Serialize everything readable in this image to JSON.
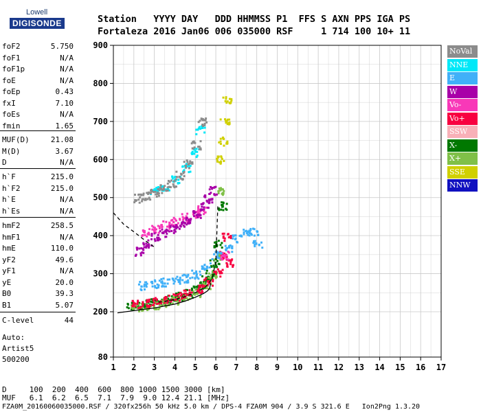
{
  "logo": {
    "top": "Lowell",
    "bottom": "DIGISONDE"
  },
  "header": {
    "line1": "Station   YYYY DAY   DDD HHMMSS P1  FFS S AXN PPS IGA PS",
    "line2": "Fortaleza 2016 Jan06 006 035000 RSF     1 714 100 10+ 11"
  },
  "params_group1": [
    {
      "name": "foF2",
      "value": "5.750"
    },
    {
      "name": "foF1",
      "value": "N/A"
    },
    {
      "name": "foF1p",
      "value": "N/A"
    },
    {
      "name": "foE",
      "value": "N/A"
    },
    {
      "name": "foEp",
      "value": "0.43"
    },
    {
      "name": "fxI",
      "value": "7.10"
    },
    {
      "name": "foEs",
      "value": "N/A"
    },
    {
      "name": "fmin",
      "value": "1.65"
    }
  ],
  "params_group2": [
    {
      "name": "MUF(D)",
      "value": "21.08"
    },
    {
      "name": "M(D)",
      "value": "3.67"
    },
    {
      "name": "D",
      "value": "N/A"
    }
  ],
  "params_group3": [
    {
      "name": "h`F",
      "value": "215.0"
    },
    {
      "name": "h`F2",
      "value": "215.0"
    },
    {
      "name": "h`E",
      "value": "N/A"
    },
    {
      "name": "h`Es",
      "value": "N/A"
    }
  ],
  "params_group4": [
    {
      "name": "hmF2",
      "value": "258.5"
    },
    {
      "name": "hmF1",
      "value": "N/A"
    },
    {
      "name": "hmE",
      "value": "110.0"
    },
    {
      "name": "yF2",
      "value": "49.6"
    },
    {
      "name": "yF1",
      "value": "N/A"
    },
    {
      "name": "yE",
      "value": "20.0"
    },
    {
      "name": "B0",
      "value": "39.3"
    },
    {
      "name": "B1",
      "value": "5.07"
    }
  ],
  "clevel": {
    "name": "C-level",
    "value": "44"
  },
  "auto": {
    "l1": "Auto:",
    "l2": "Artist5",
    "l3": "500200"
  },
  "legend": [
    {
      "label": "NoVal",
      "color": "#8c8c8c"
    },
    {
      "label": "NNE",
      "color": "#00e8f8"
    },
    {
      "label": "E",
      "color": "#40b0f8"
    },
    {
      "label": "W",
      "color": "#a800a8"
    },
    {
      "label": "Vo-",
      "color": "#f838b8"
    },
    {
      "label": "Vo+",
      "color": "#f80040"
    },
    {
      "label": "SSW",
      "color": "#f8b0b8"
    },
    {
      "label": "X-",
      "color": "#007800"
    },
    {
      "label": "X+",
      "color": "#80c048"
    },
    {
      "label": "SSE",
      "color": "#d0d000"
    },
    {
      "label": "NNW",
      "color": "#1010c0"
    }
  ],
  "footer": {
    "row1": "D     100  200  400  600  800 1000 1500 3000 [km]",
    "row2": "MUF   6.1  6.2  6.5  7.1  7.9  9.0 12.4 21.1 [MHz]",
    "row3": "FZA0M_20160060035000.RSF / 320fx256h 50 kHz 5.0 km / DPS-4 FZA0M 904 / 3.9 S 321.6 E   Ion2Png 1.3.20"
  },
  "chart_data": {
    "type": "scatter",
    "title": "",
    "xlabel": "",
    "ylabel": "",
    "xlim": [
      1,
      17
    ],
    "ylim": [
      80,
      900
    ],
    "x_ticks": [
      1,
      2,
      3,
      4,
      5,
      6,
      7,
      8,
      9,
      10,
      11,
      12,
      13,
      14,
      15,
      16,
      17
    ],
    "y_ticks": [
      80,
      200,
      300,
      400,
      500,
      600,
      700,
      800,
      900
    ],
    "grid": true,
    "legend_position": "right",
    "series": [
      {
        "name": "X-",
        "color": "#007800",
        "x": [
          1.8,
          2.2,
          2.6,
          3.0,
          3.4,
          3.8,
          4.2,
          4.6,
          5.0,
          5.3,
          5.5,
          5.7,
          5.9,
          6.1,
          6.3
        ],
        "y": [
          215,
          218,
          222,
          226,
          230,
          236,
          242,
          250,
          260,
          272,
          285,
          300,
          330,
          380,
          480
        ]
      },
      {
        "name": "X+",
        "color": "#80c048",
        "x": [
          2.0,
          2.5,
          3.0,
          3.5,
          4.0,
          4.5,
          5.0,
          5.5,
          5.8,
          6.0,
          6.3
        ],
        "y": [
          212,
          216,
          220,
          226,
          232,
          240,
          252,
          272,
          300,
          350,
          520
        ]
      },
      {
        "name": "Vo+",
        "color": "#f80040",
        "x": [
          2.1,
          2.6,
          3.1,
          3.6,
          4.1,
          4.6,
          5.1,
          5.6,
          6.1,
          6.3,
          6.5,
          6.7
        ],
        "y": [
          222,
          226,
          230,
          236,
          242,
          250,
          262,
          280,
          305,
          350,
          400,
          330
        ]
      },
      {
        "name": "Vo-",
        "color": "#f838b8",
        "x": [
          2.5,
          3.0,
          3.5,
          4.0,
          4.5,
          5.0,
          5.3,
          6.4
        ],
        "y": [
          410,
          420,
          430,
          440,
          450,
          460,
          470,
          350
        ]
      },
      {
        "name": "W",
        "color": "#a800a8",
        "x": [
          2.2,
          2.6,
          3.0,
          3.4,
          3.8,
          4.2,
          4.6,
          5.0,
          5.4,
          5.6,
          5.8
        ],
        "y": [
          360,
          380,
          400,
          410,
          420,
          430,
          440,
          460,
          480,
          500,
          520
        ]
      },
      {
        "name": "E",
        "color": "#40b0f8",
        "x": [
          2.4,
          3.0,
          3.5,
          4.0,
          4.5,
          5.0,
          5.5,
          6.0,
          6.6,
          7.0,
          7.5,
          7.8,
          8.0
        ],
        "y": [
          270,
          275,
          280,
          285,
          290,
          300,
          320,
          350,
          370,
          395,
          415,
          410,
          380
        ]
      },
      {
        "name": "NNE",
        "color": "#00e8f8",
        "x": [
          3.0,
          3.5,
          4.0,
          4.5,
          5.0,
          5.2
        ],
        "y": [
          520,
          530,
          550,
          580,
          620,
          680
        ]
      },
      {
        "name": "NoVal",
        "color": "#8c8c8c",
        "x": [
          2.2,
          2.6,
          3.0,
          3.4,
          3.8,
          4.2,
          4.6,
          5.0,
          5.3
        ],
        "y": [
          500,
          505,
          515,
          525,
          540,
          560,
          590,
          640,
          700
        ]
      },
      {
        "name": "SSE",
        "color": "#d0d000",
        "x": [
          6.2,
          6.3,
          6.4,
          6.5
        ],
        "y": [
          600,
          650,
          700,
          760
        ]
      }
    ],
    "trace_lines": [
      {
        "style": "solid",
        "x": [
          1.2,
          2.0,
          3.0,
          4.0,
          4.5,
          5.0,
          5.4,
          5.6,
          5.7,
          5.75
        ],
        "y": [
          197,
          203,
          210,
          220,
          228,
          238,
          248,
          255,
          262,
          275
        ]
      },
      {
        "style": "dashed",
        "x": [
          1.0,
          1.5,
          2.0,
          2.6,
          3.0
        ],
        "y": [
          460,
          430,
          410,
          385,
          370
        ]
      },
      {
        "style": "dashed",
        "x": [
          3.2,
          3.8,
          4.4,
          5.0,
          5.5,
          5.8,
          6.0,
          6.1
        ],
        "y": [
          225,
          230,
          238,
          250,
          265,
          285,
          330,
          480
        ]
      }
    ]
  }
}
